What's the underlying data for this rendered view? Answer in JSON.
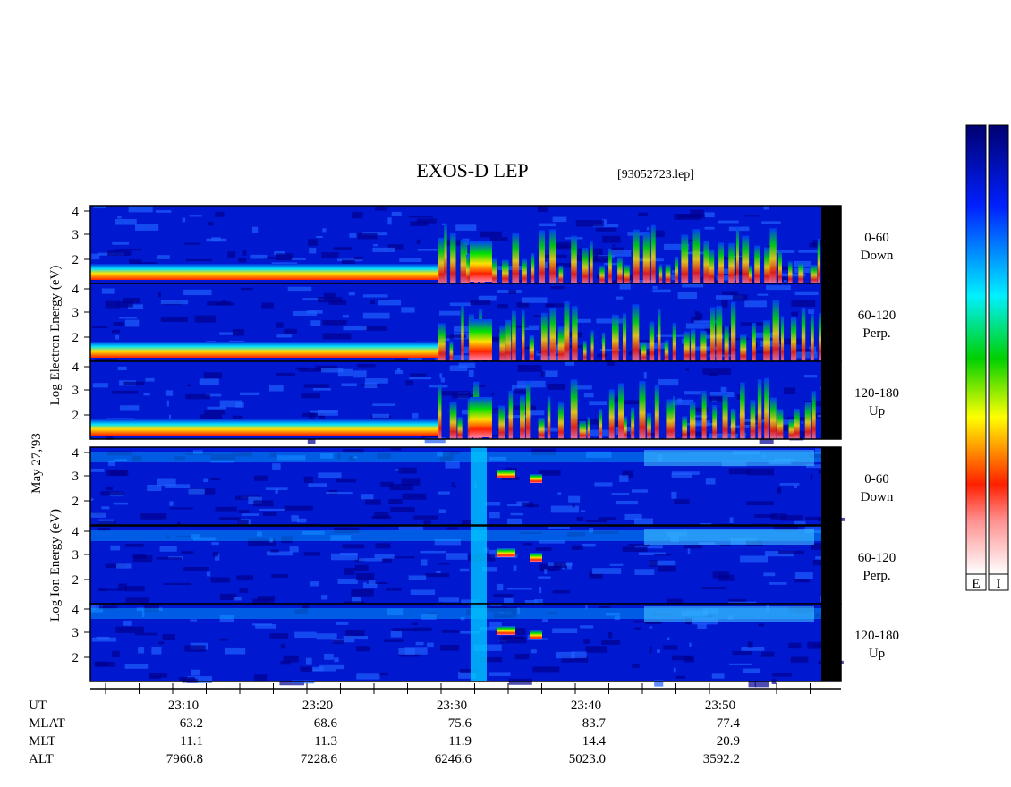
{
  "header": {
    "title": "EXOS-D LEP",
    "file": "[93052723.lep]"
  },
  "electron": {
    "axis_label": "Log  Electron  Energy  (eV)",
    "yticks": [
      "4",
      "3",
      "2"
    ],
    "panels": [
      {
        "range": "0-60",
        "dir": "Down"
      },
      {
        "range": "60-120",
        "dir": "Perp."
      },
      {
        "range": "120-180",
        "dir": "Up"
      }
    ]
  },
  "date": "May 27,'93",
  "ion": {
    "axis_label": "Log  Ion  Energy  (eV)",
    "yticks": [
      "4",
      "3",
      "2"
    ],
    "panels": [
      {
        "range": "0-60",
        "dir": "Down"
      },
      {
        "range": "60-120",
        "dir": "Perp."
      },
      {
        "range": "120-180",
        "dir": "Up"
      }
    ]
  },
  "footer": {
    "rows": [
      {
        "name": "UT",
        "values": [
          "23:10",
          "23:20",
          "23:30",
          "23:40",
          "23:50"
        ]
      },
      {
        "name": "MLAT",
        "values": [
          "63.2",
          "68.6",
          "75.6",
          "83.7",
          "77.4"
        ]
      },
      {
        "name": "MLT",
        "values": [
          "11.1",
          "11.3",
          "11.9",
          "14.4",
          "20.9"
        ]
      },
      {
        "name": "ALT",
        "values": [
          "7960.8",
          "7228.6",
          "6246.6",
          "5023.0",
          "3592.2"
        ]
      }
    ]
  },
  "colorbars": [
    "E",
    "I"
  ]
}
